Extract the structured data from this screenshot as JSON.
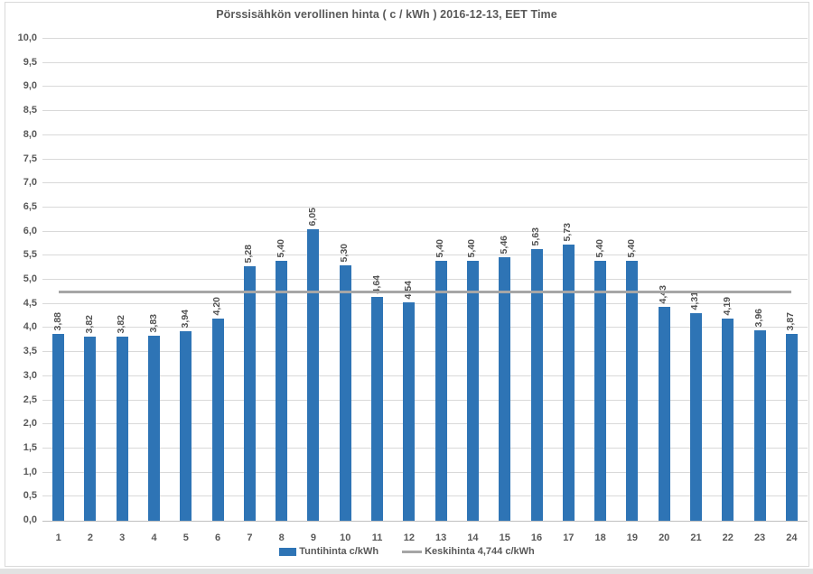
{
  "title": "Pörssisähkön verollinen hinta ( c / kWh ) 2016-12-13, EET Time",
  "legend": {
    "series_label": "Tuntihinta c/kWh",
    "average_label": "Keskihinta 4,744 c/kWh"
  },
  "colors": {
    "bar": "#2e74b5",
    "average_line": "#a6a6a6",
    "gridline": "#d9d9d9",
    "axis_line": "#bfbfbf",
    "text": "#595959",
    "chart_border": "#d9d9d9",
    "page_strip": "#e2e2e2"
  },
  "chart_data": {
    "type": "bar",
    "title": "Pörssisähkön verollinen hinta ( c / kWh ) 2016-12-13, EET Time",
    "categories": [
      "1",
      "2",
      "3",
      "4",
      "5",
      "6",
      "7",
      "8",
      "9",
      "10",
      "11",
      "12",
      "13",
      "14",
      "15",
      "16",
      "17",
      "18",
      "19",
      "20",
      "21",
      "22",
      "23",
      "24"
    ],
    "values": [
      3.88,
      3.82,
      3.82,
      3.83,
      3.94,
      4.2,
      5.28,
      5.4,
      6.05,
      5.3,
      4.64,
      4.54,
      5.4,
      5.4,
      5.46,
      5.63,
      5.73,
      5.4,
      5.4,
      4.43,
      4.31,
      4.19,
      3.96,
      3.87
    ],
    "value_labels": [
      "3,88",
      "3,82",
      "3,82",
      "3,83",
      "3,94",
      "4,20",
      "5,28",
      "5,40",
      "6,05",
      "5,30",
      "4,64",
      "4,54",
      "5,40",
      "5,40",
      "5,46",
      "5,63",
      "5,73",
      "5,40",
      "5,40",
      "4,43",
      "4,31",
      "4,19",
      "3,96",
      "3,87"
    ],
    "series_name": "Tuntihinta c/kWh",
    "average_value": 4.744,
    "average_label": "Keskihinta 4,744 c/kWh",
    "xlabel": "",
    "ylabel": "",
    "ylim": [
      0,
      10
    ],
    "ytick_step": 0.5,
    "ytick_labels": [
      "10,0",
      "9,5",
      "9,0",
      "8,5",
      "8,0",
      "7,5",
      "7,0",
      "6,5",
      "6,0",
      "5,5",
      "5,0",
      "4,5",
      "4,0",
      "3,5",
      "3,0",
      "2,5",
      "2,0",
      "1,5",
      "1,0",
      "0,5",
      "0,0"
    ],
    "grid": true,
    "legend_position": "bottom"
  }
}
